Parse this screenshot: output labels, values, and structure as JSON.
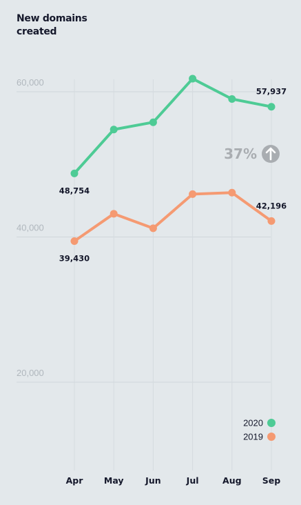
{
  "title": "New domains created",
  "chart_data": {
    "type": "line",
    "categories": [
      "Apr",
      "May",
      "Jun",
      "Jul",
      "Aug",
      "Sep"
    ],
    "series": [
      {
        "name": "2020",
        "color": "#4ecb95",
        "values": [
          48754,
          54800,
          55800,
          61800,
          59000,
          57937
        ]
      },
      {
        "name": "2019",
        "color": "#f59a72",
        "values": [
          39430,
          43200,
          41200,
          45900,
          46100,
          42196
        ]
      }
    ],
    "ylim": [
      10000,
      62000
    ],
    "yticks": [
      {
        "value": 60000,
        "label": "60,000"
      },
      {
        "value": 40000,
        "label": "40,000"
      },
      {
        "value": 20000,
        "label": "20,000"
      }
    ],
    "data_labels": [
      {
        "series": 0,
        "index": 0,
        "text": "48,754",
        "placement": "below"
      },
      {
        "series": 0,
        "index": 5,
        "text": "57,937",
        "placement": "above"
      },
      {
        "series": 1,
        "index": 0,
        "text": "39,430",
        "placement": "below"
      },
      {
        "series": 1,
        "index": 5,
        "text": "42,196",
        "placement": "above"
      }
    ],
    "annotation": {
      "text": "37%",
      "icon": "arrow-up-circle-icon"
    },
    "legend_position": "bottom-right",
    "grid": true
  }
}
